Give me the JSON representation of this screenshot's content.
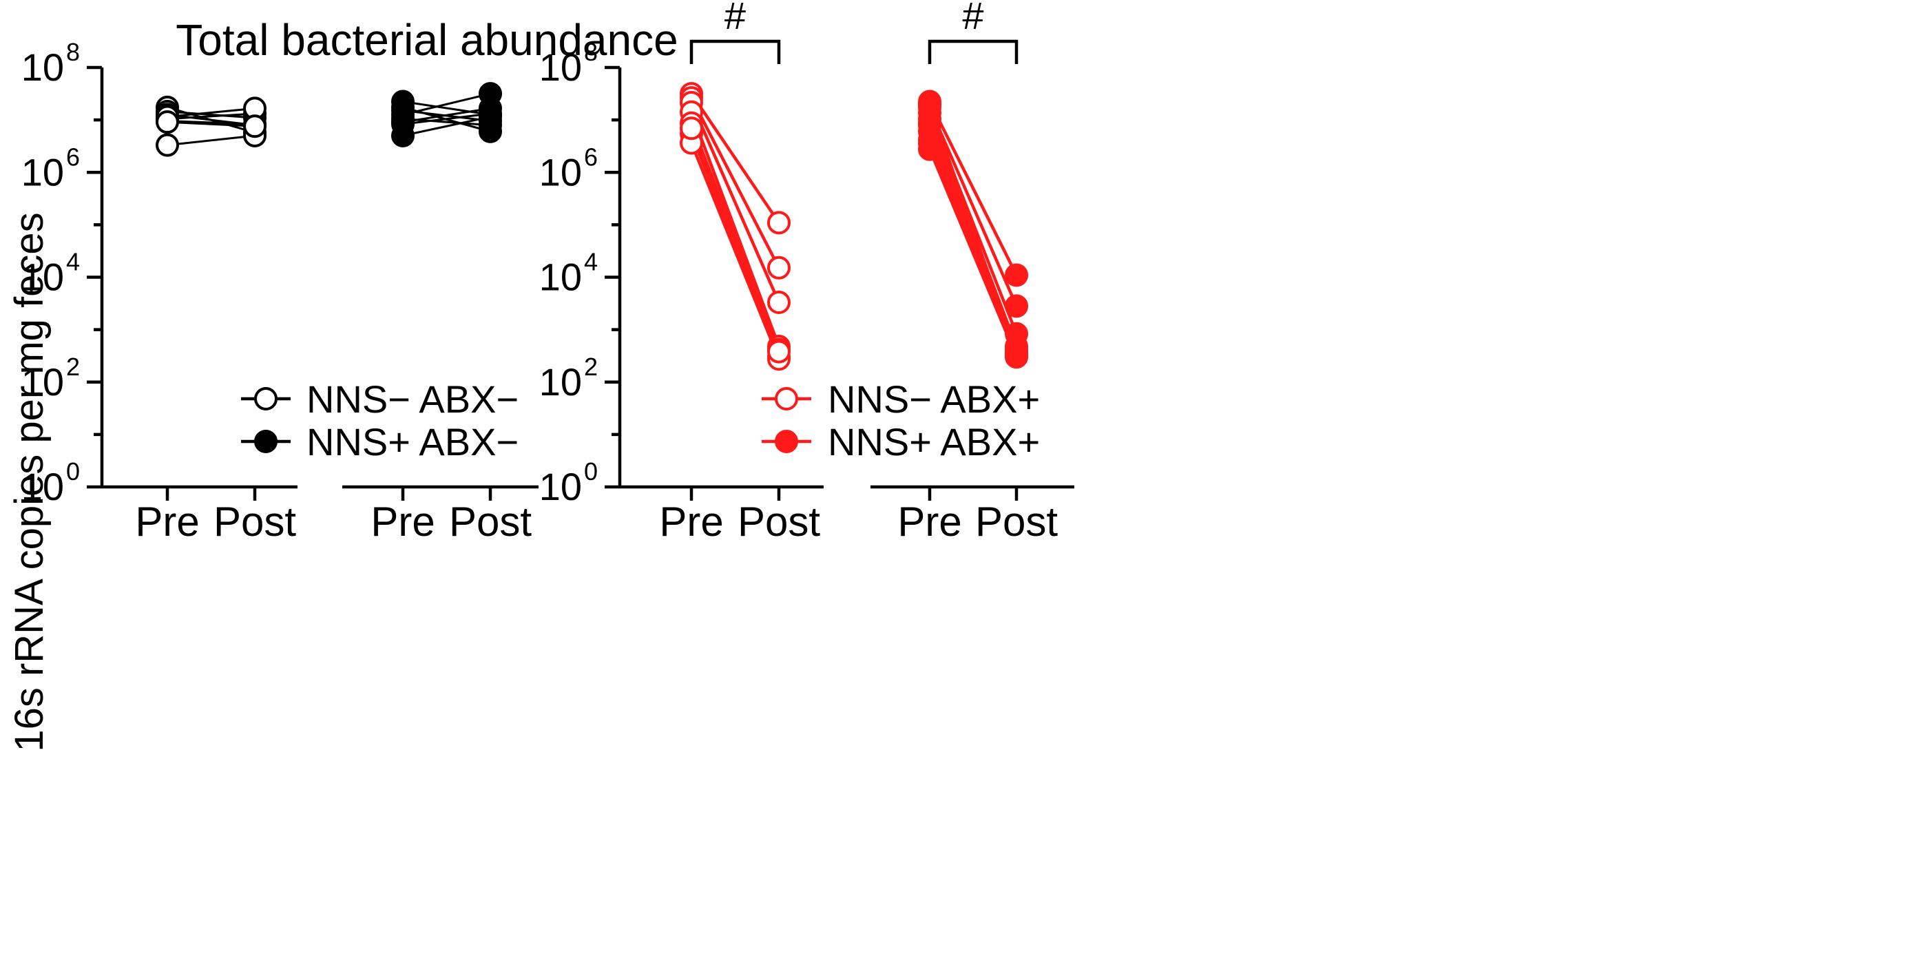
{
  "chart_data": {
    "type": "line",
    "title": "Total bacterial abundance",
    "ylabel": "16s rRNA copies per mg feces",
    "yscale": "log10",
    "ylim_exponent": [
      0,
      8
    ],
    "ytick_base": "10",
    "ytick_exponents": [
      "0",
      "2",
      "4",
      "6",
      "8"
    ],
    "categories": [
      "Pre",
      "Post"
    ],
    "significance_marker": "#",
    "colors": {
      "control": "#000000",
      "abx": "#ff1a1a"
    },
    "groups": [
      {
        "name": "NNS− ABX−",
        "color": "#000000",
        "filled": false,
        "legend_label": "NNS− ABX−",
        "significant": false,
        "pairs_log10": [
          [
            7.24,
            6.76
          ],
          [
            7.16,
            7.04
          ],
          [
            7.1,
            6.9
          ],
          [
            7.02,
            7.12
          ],
          [
            6.98,
            6.92
          ],
          [
            6.52,
            6.7
          ],
          [
            7.06,
            7.22
          ],
          [
            6.96,
            6.88
          ]
        ]
      },
      {
        "name": "NNS+ ABX−",
        "color": "#000000",
        "filled": true,
        "legend_label": "NNS+ ABX−",
        "significant": false,
        "pairs_log10": [
          [
            7.35,
            7.1
          ],
          [
            7.24,
            6.78
          ],
          [
            7.1,
            7.5
          ],
          [
            7.02,
            6.9
          ],
          [
            6.96,
            7.22
          ],
          [
            6.7,
            7.06
          ],
          [
            6.92,
            7.12
          ],
          [
            7.18,
            6.98
          ]
        ]
      },
      {
        "name": "NNS− ABX+",
        "color": "#ff1a1a",
        "filled": false,
        "legend_label": "NNS− ABX+",
        "significant": true,
        "pairs_log10": [
          [
            7.5,
            5.04
          ],
          [
            7.42,
            4.18
          ],
          [
            7.33,
            3.52
          ],
          [
            7.15,
            2.68
          ],
          [
            6.94,
            2.62
          ],
          [
            6.74,
            2.48
          ],
          [
            6.56,
            2.44
          ],
          [
            6.84,
            2.58
          ]
        ]
      },
      {
        "name": "NNS+ ABX+",
        "color": "#ff1a1a",
        "filled": true,
        "legend_label": "NNS+ ABX+",
        "significant": true,
        "pairs_log10": [
          [
            7.35,
            4.04
          ],
          [
            7.24,
            3.45
          ],
          [
            7.14,
            2.92
          ],
          [
            7.02,
            2.68
          ],
          [
            6.9,
            2.58
          ],
          [
            6.78,
            2.54
          ],
          [
            6.62,
            2.5
          ],
          [
            6.44,
            2.48
          ],
          [
            6.55,
            2.56
          ],
          [
            6.95,
            2.62
          ],
          [
            7.3,
            2.52
          ]
        ]
      }
    ]
  }
}
